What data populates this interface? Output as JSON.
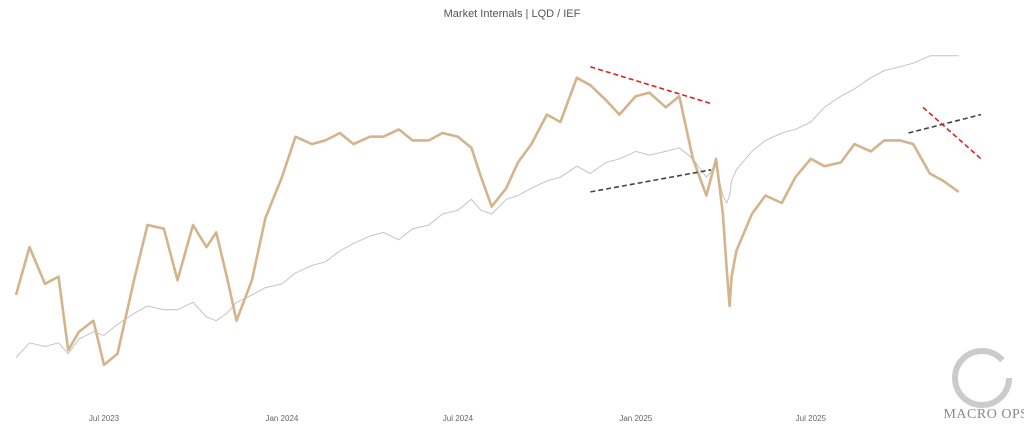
{
  "chart_data": {
    "type": "line",
    "title": "Market Internals | LQD / IEF",
    "xlabel": "",
    "ylabel": "",
    "x_range": [
      "2023-04-01",
      "2025-12-25"
    ],
    "grid": false,
    "legend": "none",
    "x_ticks": [
      "Jul 2023",
      "Jan 2024",
      "Jul 2024",
      "Jan 2025",
      "Jul 2025"
    ],
    "colors": {
      "tan": "#d4b48c",
      "gray": "#c4c4c4",
      "red_dashed": "#e0201e",
      "dark_dashed": "#444444"
    },
    "series": [
      {
        "color": "tan",
        "x": [
          "2023-04-01",
          "2023-04-15",
          "2023-05-01",
          "2023-05-15",
          "2023-05-25",
          "2023-06-05",
          "2023-06-20",
          "2023-07-01",
          "2023-07-15",
          "2023-08-01",
          "2023-08-15",
          "2023-09-01",
          "2023-09-15",
          "2023-10-01",
          "2023-10-15",
          "2023-10-25",
          "2023-11-05",
          "2023-11-15",
          "2023-12-01",
          "2023-12-15",
          "2024-01-01",
          "2024-01-15",
          "2024-02-01",
          "2024-02-15",
          "2024-03-01",
          "2024-03-15",
          "2024-04-01",
          "2024-04-15",
          "2024-05-01",
          "2024-05-15",
          "2024-06-01",
          "2024-06-15",
          "2024-07-01",
          "2024-07-15",
          "2024-07-25",
          "2024-08-05",
          "2024-08-20",
          "2024-09-01",
          "2024-09-15",
          "2024-10-01",
          "2024-10-15",
          "2024-11-01",
          "2024-11-15",
          "2024-12-01",
          "2024-12-15",
          "2025-01-01",
          "2025-01-15",
          "2025-02-01",
          "2025-02-15",
          "2025-03-01",
          "2025-03-15",
          "2025-03-25",
          "2025-04-01",
          "2025-04-05",
          "2025-04-08",
          "2025-04-10",
          "2025-04-15",
          "2025-05-01",
          "2025-05-15",
          "2025-06-01",
          "2025-06-15",
          "2025-07-01",
          "2025-07-15",
          "2025-08-01",
          "2025-08-15",
          "2025-09-01",
          "2025-09-15",
          "2025-10-01",
          "2025-10-15",
          "2025-11-01",
          "2025-11-15",
          "2025-12-01"
        ],
        "y": [
          53,
          66,
          56,
          58,
          38,
          43,
          46,
          34,
          37,
          57,
          72,
          71,
          57,
          72,
          66,
          70,
          58,
          46,
          57,
          74,
          85,
          96,
          94,
          95,
          97,
          94,
          96,
          96,
          98,
          95,
          95,
          97,
          96,
          93,
          85,
          77,
          82,
          89,
          94,
          102,
          100,
          112,
          110,
          106,
          102,
          107,
          108,
          104,
          107,
          90,
          80,
          90,
          75,
          60,
          50,
          58,
          65,
          75,
          80,
          78,
          85,
          90,
          88,
          89,
          94,
          92,
          95,
          95,
          94,
          86,
          84,
          81
        ]
      },
      {
        "color": "gray",
        "x": [
          "2023-04-01",
          "2023-04-15",
          "2023-05-01",
          "2023-05-15",
          "2023-05-25",
          "2023-06-05",
          "2023-06-20",
          "2023-07-01",
          "2023-07-15",
          "2023-08-01",
          "2023-08-15",
          "2023-09-01",
          "2023-09-15",
          "2023-10-01",
          "2023-10-15",
          "2023-10-25",
          "2023-11-05",
          "2023-11-15",
          "2023-12-01",
          "2023-12-15",
          "2024-01-01",
          "2024-01-15",
          "2024-02-01",
          "2024-02-15",
          "2024-03-01",
          "2024-03-15",
          "2024-04-01",
          "2024-04-15",
          "2024-05-01",
          "2024-05-15",
          "2024-06-01",
          "2024-06-15",
          "2024-07-01",
          "2024-07-15",
          "2024-07-25",
          "2024-08-05",
          "2024-08-20",
          "2024-09-01",
          "2024-09-15",
          "2024-10-01",
          "2024-10-15",
          "2024-11-01",
          "2024-11-15",
          "2024-12-01",
          "2024-12-15",
          "2025-01-01",
          "2025-01-15",
          "2025-02-01",
          "2025-02-15",
          "2025-03-01",
          "2025-03-15",
          "2025-03-25",
          "2025-04-01",
          "2025-04-05",
          "2025-04-08",
          "2025-04-10",
          "2025-04-15",
          "2025-05-01",
          "2025-05-15",
          "2025-06-01",
          "2025-06-15",
          "2025-07-01",
          "2025-07-15",
          "2025-08-01",
          "2025-08-15",
          "2025-09-01",
          "2025-09-15",
          "2025-10-01",
          "2025-10-15",
          "2025-11-01",
          "2025-11-15",
          "2025-12-01"
        ],
        "y": [
          36,
          40,
          39,
          40,
          37,
          41,
          43,
          42,
          45,
          48,
          50,
          49,
          49,
          51,
          47,
          46,
          48,
          51,
          53,
          55,
          56,
          59,
          61,
          62,
          65,
          67,
          69,
          70,
          68,
          71,
          72,
          75,
          76,
          79,
          76,
          75,
          79,
          80,
          82,
          84,
          85,
          88,
          86,
          89,
          90,
          92,
          91,
          92,
          93,
          90,
          85,
          88,
          80,
          78,
          80,
          84,
          87,
          92,
          95,
          97,
          98,
          100,
          104,
          107,
          109,
          112,
          114,
          115,
          116,
          118,
          118,
          118
        ]
      }
    ],
    "annotations": [
      {
        "type": "dashed-trendline",
        "color": "red_dashed",
        "x": [
          "2024-11-15",
          "2025-03-20"
        ],
        "y": [
          115,
          105
        ]
      },
      {
        "type": "dashed-trendline",
        "color": "dark_dashed",
        "x": [
          "2024-11-15",
          "2025-03-20"
        ],
        "y": [
          81,
          87
        ]
      },
      {
        "type": "dashed-trendline",
        "color": "dark_dashed",
        "x": [
          "2025-10-10",
          "2025-12-24"
        ],
        "y": [
          97,
          102
        ]
      },
      {
        "type": "dashed-trendline",
        "color": "red_dashed",
        "x": [
          "2025-10-25",
          "2025-12-24"
        ],
        "y": [
          104,
          90
        ]
      }
    ]
  },
  "watermark": {
    "brand": "MACRO OPS",
    "icon": "enso-circle-icon"
  }
}
